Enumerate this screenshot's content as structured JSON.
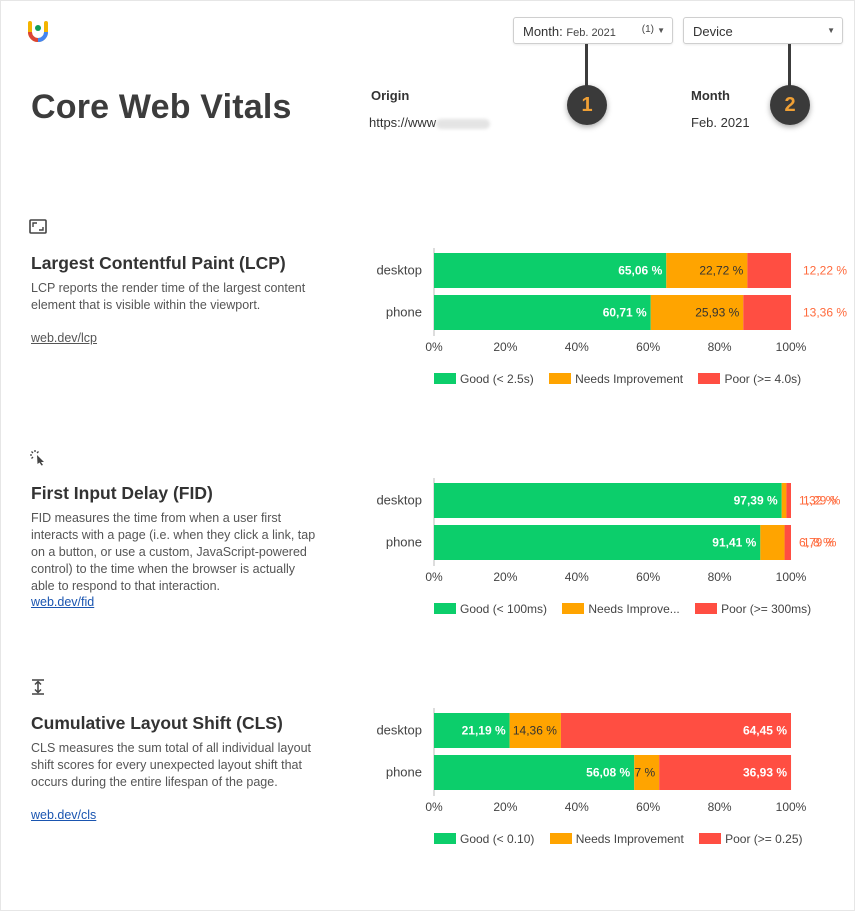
{
  "header": {
    "title": "Core Web Vitals",
    "origin_label": "Origin",
    "origin_value": "https://www",
    "month_label": "Month",
    "month_value": "Feb. 2021"
  },
  "filters": {
    "month": {
      "label": "Month:",
      "value": "Feb. 2021",
      "count": "(1)"
    },
    "device": {
      "label": "Device"
    }
  },
  "callouts": [
    "1",
    "2"
  ],
  "colors": {
    "good": "#0cce6b",
    "needs": "#ffa400",
    "poor": "#ff4e42"
  },
  "sections": [
    {
      "icon": "lcp-frame-icon",
      "title": "Largest Contentful Paint (LCP)",
      "desc": "LCP reports the render time of the largest content element that is visible within the viewport.",
      "link": "web.dev/lcp"
    },
    {
      "icon": "cursor-click-icon",
      "title": "First Input Delay (FID)",
      "desc": "FID measures the time from when a user first interacts with a page (i.e. when they click a link, tap on a button, or use a custom, JavaScript-powered control) to the time when the browser is actually able to respond to that interaction.",
      "link": "web.dev/fid"
    },
    {
      "icon": "layout-shift-icon",
      "title": "Cumulative Layout Shift (CLS)",
      "desc": "CLS measures the sum total of all individual layout shift scores for every unexpected layout shift that occurs during the entire lifespan of the page.",
      "link": "web.dev/cls"
    }
  ],
  "chart_data": [
    {
      "type": "bar",
      "stacked": true,
      "orientation": "horizontal",
      "categories": [
        "desktop",
        "phone"
      ],
      "series": [
        {
          "name": "Good (< 2.5s)",
          "values": [
            65.06,
            60.71
          ],
          "labels": [
            "65,06 %",
            "60,71 %"
          ]
        },
        {
          "name": "Needs Improvement",
          "values": [
            22.72,
            25.93
          ],
          "labels": [
            "22,72 %",
            "25,93 %"
          ]
        },
        {
          "name": "Poor (>= 4.0s)",
          "values": [
            12.22,
            13.36
          ],
          "labels": [
            "12,22 %",
            "13,36 %"
          ]
        }
      ],
      "xticks": [
        "0%",
        "20%",
        "40%",
        "60%",
        "80%",
        "100%"
      ],
      "xlim": [
        0,
        100
      ]
    },
    {
      "type": "bar",
      "stacked": true,
      "orientation": "horizontal",
      "categories": [
        "desktop",
        "phone"
      ],
      "series": [
        {
          "name": "Good (< 100ms)",
          "values": [
            97.39,
            91.41
          ],
          "labels": [
            "97,39 %",
            "91,41 %"
          ]
        },
        {
          "name": "Needs Improve...",
          "values": [
            1.32,
            6.79
          ],
          "labels": [
            "1,32 %",
            "6,79 %"
          ]
        },
        {
          "name": "Poor (>= 300ms)",
          "values": [
            1.29,
            1.8
          ],
          "labels": [
            "1,29 %",
            "1,8 %"
          ]
        }
      ],
      "xticks": [
        "0%",
        "20%",
        "40%",
        "60%",
        "80%",
        "100%"
      ],
      "xlim": [
        0,
        100
      ]
    },
    {
      "type": "bar",
      "stacked": true,
      "orientation": "horizontal",
      "categories": [
        "desktop",
        "phone"
      ],
      "series": [
        {
          "name": "Good (< 0.10)",
          "values": [
            21.19,
            56.08
          ],
          "labels": [
            "21,19 %",
            "56,08 %"
          ]
        },
        {
          "name": "Needs Improvement",
          "values": [
            14.36,
            7
          ],
          "labels": [
            "14,36 %",
            "7 %"
          ]
        },
        {
          "name": "Poor (>= 0.25)",
          "values": [
            64.45,
            36.93
          ],
          "labels": [
            "64,45 %",
            "36,93 %"
          ]
        }
      ],
      "xticks": [
        "0%",
        "20%",
        "40%",
        "60%",
        "80%",
        "100%"
      ],
      "xlim": [
        0,
        100
      ]
    }
  ]
}
